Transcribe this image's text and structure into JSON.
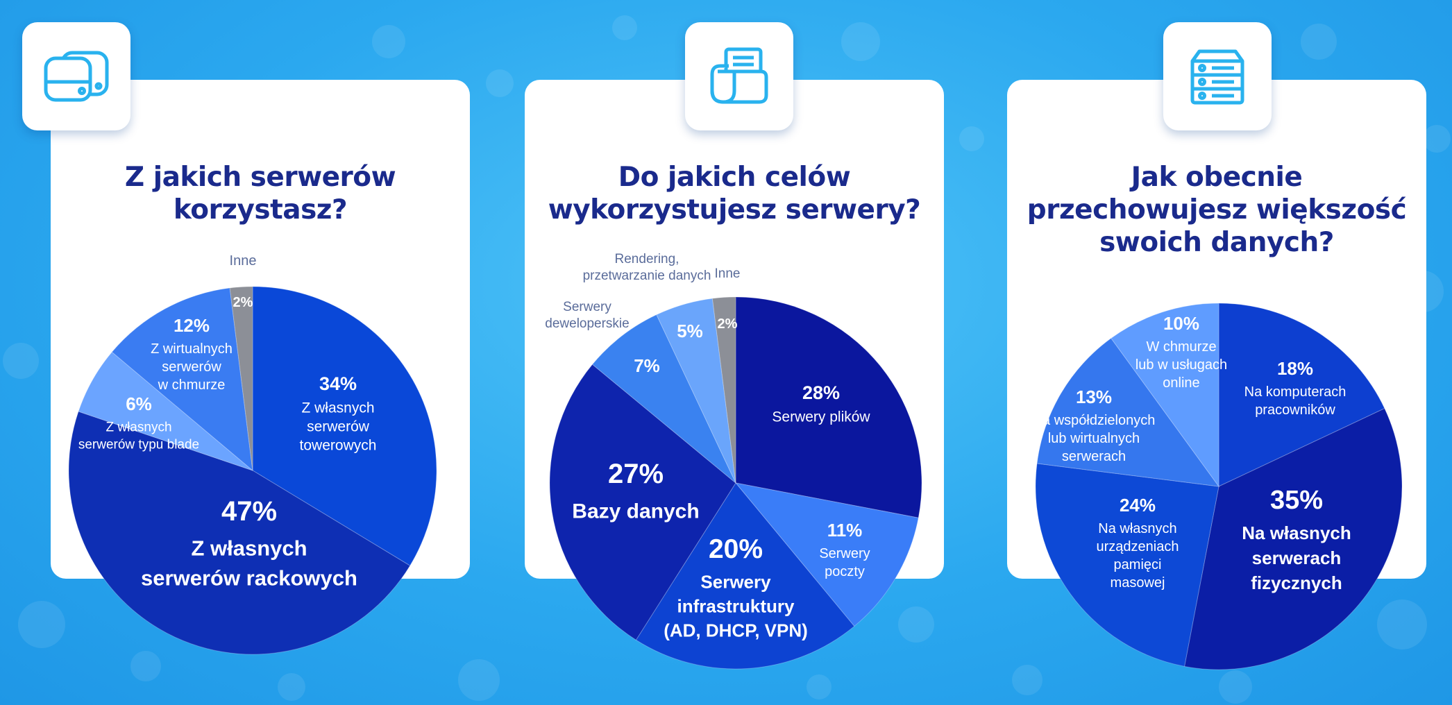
{
  "chart_data": [
    {
      "type": "pie",
      "title": "Z jakich serwerów korzystasz?",
      "title_lines": [
        "Z jakich serwerów",
        "korzystasz?"
      ],
      "slices": [
        {
          "label_lines": [
            "Z własnych",
            "serwerów",
            "towerowych"
          ],
          "value": 34,
          "value_text": "34%",
          "color": "#0a48d8"
        },
        {
          "label_lines": [
            "Z własnych",
            "serwerów rackowych"
          ],
          "value": 47,
          "value_text": "47%",
          "color": "#0e2fb4"
        },
        {
          "label_lines": [
            "Z własnych",
            "serwerów typu blade"
          ],
          "value": 6,
          "value_text": "6%",
          "color": "#6ba4ff"
        },
        {
          "label_lines": [
            "Z wirtualnych",
            "serwerów",
            "w chmurze"
          ],
          "value": 12,
          "value_text": "12%",
          "color": "#3a7cf2"
        },
        {
          "label_lines": [
            "Inne"
          ],
          "value": 2,
          "value_text": "2%",
          "color": "#8c8f97"
        }
      ]
    },
    {
      "type": "pie",
      "title": "Do jakich celów wykorzystujesz serwery?",
      "title_lines": [
        "Do jakich celów",
        "wykorzystujesz serwery?"
      ],
      "slices": [
        {
          "label_lines": [
            "Serwery plików"
          ],
          "value": 28,
          "value_text": "28%",
          "color": "#0b179e"
        },
        {
          "label_lines": [
            "Serwery",
            "poczty"
          ],
          "value": 11,
          "value_text": "11%",
          "color": "#3a7df8"
        },
        {
          "label_lines": [
            "Serwery",
            "infrastruktury",
            "(AD, DHCP, VPN)"
          ],
          "value": 20,
          "value_text": "20%",
          "color": "#0d43d2"
        },
        {
          "label_lines": [
            "Bazy danych"
          ],
          "value": 27,
          "value_text": "27%",
          "color": "#0e24ad"
        },
        {
          "label_lines": [
            "Serwery",
            "deweloperskie"
          ],
          "value": 7,
          "value_text": "7%",
          "color": "#3a82f0"
        },
        {
          "label_lines": [
            "Rendering,",
            "przetwarzanie danych"
          ],
          "value": 5,
          "value_text": "5%",
          "color": "#6aa5fb"
        },
        {
          "label_lines": [
            "Inne"
          ],
          "value": 2,
          "value_text": "2%",
          "color": "#8c8f97"
        }
      ]
    },
    {
      "type": "pie",
      "title": "Jak obecnie przechowujesz większość swoich danych?",
      "title_lines": [
        "Jak obecnie",
        "przechowujesz większość",
        "swoich danych?"
      ],
      "slices": [
        {
          "label_lines": [
            "Na komputerach",
            "pracowników"
          ],
          "value": 18,
          "value_text": "18%",
          "color": "#0d3fd0"
        },
        {
          "label_lines": [
            "Na własnych",
            "serwerach",
            "fizycznych"
          ],
          "value": 35,
          "value_text": "35%",
          "color": "#0b1ea6"
        },
        {
          "label_lines": [
            "Na własnych",
            "urządzeniach",
            "pamięci",
            "masowej"
          ],
          "value": 24,
          "value_text": "24%",
          "color": "#0d49d6"
        },
        {
          "label_lines": [
            "Na współdzielonych",
            "lub wirtualnych",
            "serwerach"
          ],
          "value": 13,
          "value_text": "13%",
          "color": "#3577ee"
        },
        {
          "label_lines": [
            "W chmurze",
            "lub w usługach",
            "online"
          ],
          "value": 10,
          "value_text": "10%",
          "color": "#5f9cff"
        }
      ]
    }
  ]
}
